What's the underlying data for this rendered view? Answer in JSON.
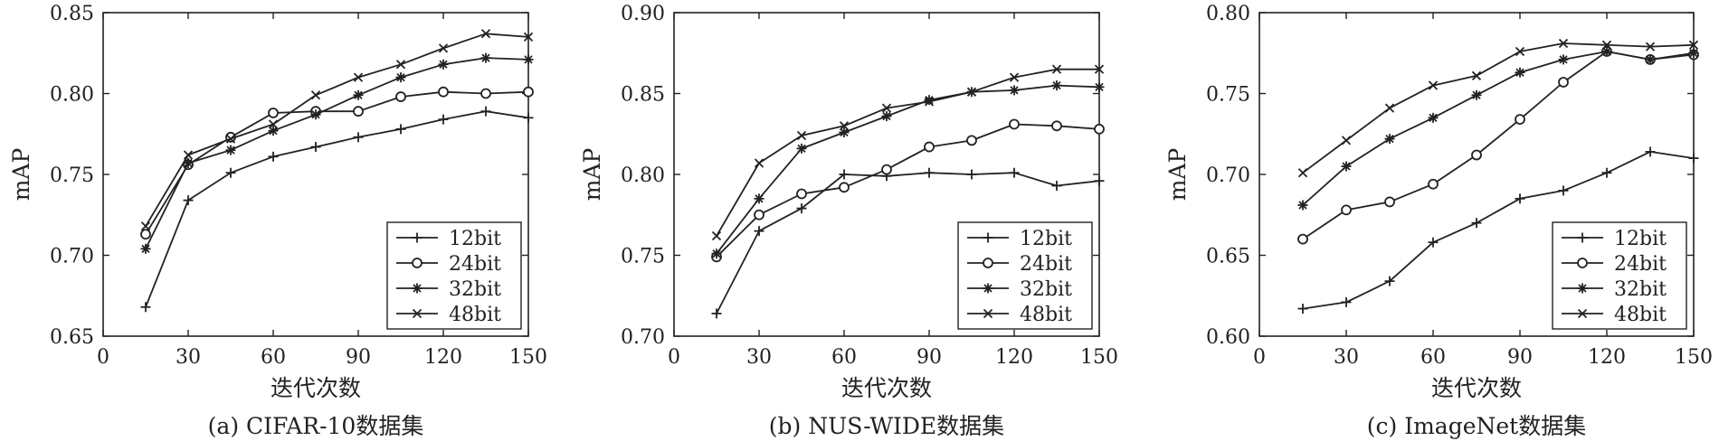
{
  "chart_data": [
    {
      "type": "line",
      "caption": "(a) CIFAR-10数据集",
      "xlabel": "迭代次数",
      "ylabel": "mAP",
      "xlim": [
        0,
        150
      ],
      "ylim": [
        0.65,
        0.85
      ],
      "xticks": [
        "0",
        "30",
        "60",
        "90",
        "120",
        "150"
      ],
      "yticks": [
        "0.65",
        "0.70",
        "0.75",
        "0.80",
        "0.85"
      ],
      "legend_position": "bottom-right",
      "x": [
        15,
        30,
        45,
        60,
        75,
        90,
        105,
        120,
        135,
        150
      ],
      "series": [
        {
          "name": "12bit",
          "marker": "plus",
          "values": [
            0.668,
            0.734,
            0.751,
            0.761,
            0.767,
            0.773,
            0.778,
            0.784,
            0.789,
            0.785
          ]
        },
        {
          "name": "24bit",
          "marker": "circle",
          "values": [
            0.713,
            0.756,
            0.773,
            0.788,
            0.789,
            0.789,
            0.798,
            0.801,
            0.8,
            0.801
          ]
        },
        {
          "name": "32bit",
          "marker": "asterisk",
          "values": [
            0.704,
            0.757,
            0.765,
            0.777,
            0.787,
            0.799,
            0.81,
            0.818,
            0.822,
            0.821
          ]
        },
        {
          "name": "48bit",
          "marker": "cross",
          "values": [
            0.718,
            0.762,
            0.772,
            0.781,
            0.799,
            0.81,
            0.818,
            0.828,
            0.837,
            0.835
          ]
        }
      ]
    },
    {
      "type": "line",
      "caption": "(b) NUS-WIDE数据集",
      "xlabel": "迭代次数",
      "ylabel": "mAP",
      "xlim": [
        0,
        150
      ],
      "ylim": [
        0.7,
        0.9
      ],
      "xticks": [
        "0",
        "30",
        "60",
        "90",
        "120",
        "150"
      ],
      "yticks": [
        "0.70",
        "0.75",
        "0.80",
        "0.85",
        "0.90"
      ],
      "legend_position": "bottom-right",
      "x": [
        15,
        30,
        45,
        60,
        75,
        90,
        105,
        120,
        135,
        150
      ],
      "series": [
        {
          "name": "12bit",
          "marker": "plus",
          "values": [
            0.714,
            0.765,
            0.779,
            0.8,
            0.799,
            0.801,
            0.8,
            0.801,
            0.793,
            0.796
          ]
        },
        {
          "name": "24bit",
          "marker": "circle",
          "values": [
            0.749,
            0.775,
            0.788,
            0.792,
            0.803,
            0.817,
            0.821,
            0.831,
            0.83,
            0.828
          ]
        },
        {
          "name": "32bit",
          "marker": "asterisk",
          "values": [
            0.751,
            0.785,
            0.816,
            0.826,
            0.836,
            0.846,
            0.851,
            0.852,
            0.855,
            0.854
          ]
        },
        {
          "name": "48bit",
          "marker": "cross",
          "values": [
            0.762,
            0.807,
            0.824,
            0.83,
            0.841,
            0.845,
            0.851,
            0.86,
            0.865,
            0.865
          ]
        }
      ]
    },
    {
      "type": "line",
      "caption": "(c) ImageNet数据集",
      "xlabel": "迭代次数",
      "ylabel": "mAP",
      "xlim": [
        0,
        150
      ],
      "ylim": [
        0.6,
        0.8
      ],
      "xticks": [
        "0",
        "30",
        "60",
        "90",
        "120",
        "150"
      ],
      "yticks": [
        "0.60",
        "0.65",
        "0.70",
        "0.75",
        "0.80"
      ],
      "legend_position": "bottom-right",
      "x": [
        15,
        30,
        45,
        60,
        75,
        90,
        105,
        120,
        135,
        150
      ],
      "series": [
        {
          "name": "12bit",
          "marker": "plus",
          "values": [
            0.617,
            0.621,
            0.634,
            0.658,
            0.67,
            0.685,
            0.69,
            0.701,
            0.714,
            0.71
          ]
        },
        {
          "name": "24bit",
          "marker": "circle",
          "values": [
            0.66,
            0.678,
            0.683,
            0.694,
            0.712,
            0.734,
            0.757,
            0.776,
            0.771,
            0.774
          ]
        },
        {
          "name": "32bit",
          "marker": "asterisk",
          "values": [
            0.681,
            0.705,
            0.722,
            0.735,
            0.749,
            0.763,
            0.771,
            0.776,
            0.771,
            0.775
          ]
        },
        {
          "name": "48bit",
          "marker": "cross",
          "values": [
            0.701,
            0.721,
            0.741,
            0.755,
            0.761,
            0.776,
            0.781,
            0.78,
            0.779,
            0.78
          ]
        }
      ]
    }
  ]
}
